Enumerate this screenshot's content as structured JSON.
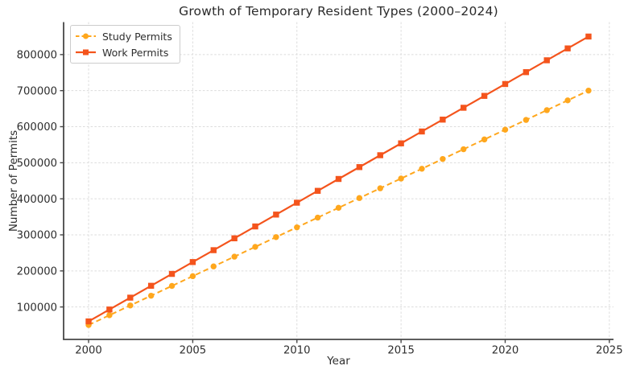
{
  "chart_data": {
    "type": "line",
    "title": "Growth of Temporary Resident Types (2000–2024)",
    "xlabel": "Year",
    "ylabel": "Number of Permits",
    "x": [
      2000,
      2001,
      2002,
      2003,
      2004,
      2005,
      2006,
      2007,
      2008,
      2009,
      2010,
      2011,
      2012,
      2013,
      2014,
      2015,
      2016,
      2017,
      2018,
      2019,
      2020,
      2021,
      2022,
      2023,
      2024
    ],
    "series": [
      {
        "name": "Study Permits",
        "color": "#FFA71D",
        "line_style": "dashed",
        "marker": "circle",
        "values": [
          50000,
          77083,
          104167,
          131250,
          158333,
          185417,
          212500,
          239583,
          266667,
          293750,
          320833,
          347917,
          375000,
          402083,
          429167,
          456250,
          483333,
          510417,
          537500,
          564583,
          591667,
          618750,
          645833,
          672917,
          700000
        ]
      },
      {
        "name": "Work Permits",
        "color": "#F4541C",
        "line_style": "solid",
        "marker": "square",
        "values": [
          60000,
          92917,
          125833,
          158750,
          191667,
          224583,
          257500,
          290417,
          323333,
          356250,
          389167,
          422083,
          455000,
          487917,
          520833,
          553750,
          586667,
          619583,
          652500,
          685417,
          718333,
          751250,
          784167,
          817083,
          850000
        ]
      }
    ],
    "xlim": [
      1998.8,
      2025.2
    ],
    "ylim": [
      10000,
      890000
    ],
    "x_ticks": [
      2000,
      2005,
      2010,
      2015,
      2020,
      2025
    ],
    "y_ticks": [
      100000,
      200000,
      300000,
      400000,
      500000,
      600000,
      700000,
      800000
    ],
    "grid": true,
    "grid_color": "#dcdcdc",
    "axis_color": "#474747",
    "tick_label_color": "#2e2e2e",
    "legend_position": "upper left"
  }
}
